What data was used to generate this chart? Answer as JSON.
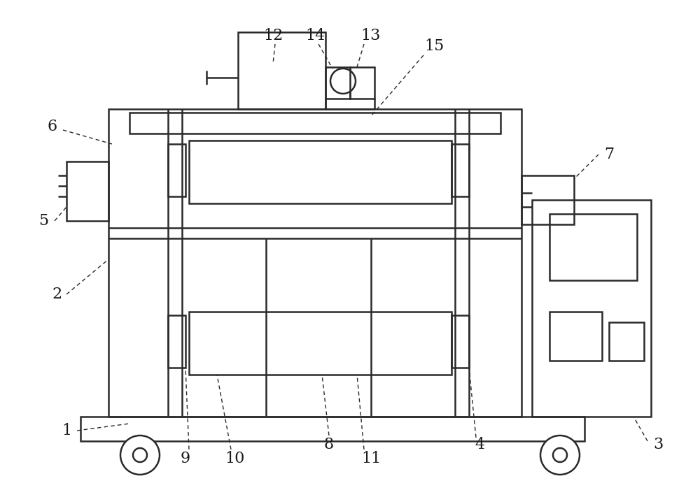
{
  "bg_color": "#ffffff",
  "line_color": "#2a2a2a",
  "line_width": 1.8,
  "fig_width": 10.0,
  "fig_height": 7.11,
  "label_fontsize": 16,
  "label_color": "#1a1a1a"
}
